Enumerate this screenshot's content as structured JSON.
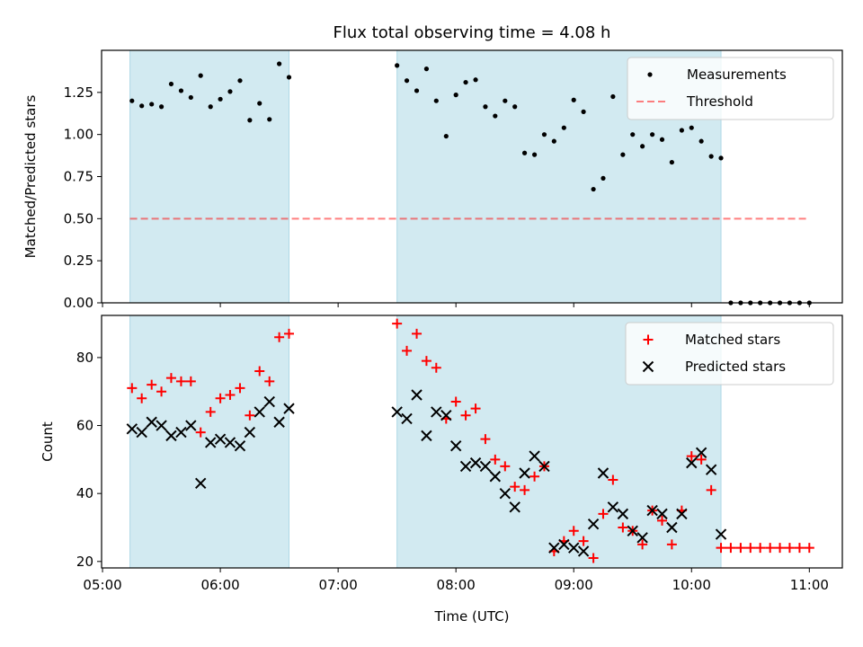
{
  "chart_data": {
    "type": "scatter",
    "title": "Flux total observing time = 4.08 h",
    "xlabel": "Time (UTC)",
    "x_tick_labels": [
      "05:00",
      "06:00",
      "07:00",
      "08:00",
      "09:00",
      "10:00",
      "11:00"
    ],
    "x_tick_hours": [
      5,
      6,
      7,
      8,
      9,
      10,
      11
    ],
    "xlim_hours": [
      4.992,
      11.28
    ],
    "observing_windows_hours": [
      [
        5.233,
        6.583
      ],
      [
        7.5,
        10.25
      ]
    ],
    "window_color": "#add8e6",
    "panels": [
      {
        "ylabel": "Matched/Predicted stars",
        "ylim": [
          0,
          1.5
        ],
        "y_ticks": [
          0.0,
          0.25,
          0.5,
          0.75,
          1.0,
          1.25
        ],
        "y_tick_labels": [
          "0.00",
          "0.25",
          "0.50",
          "0.75",
          "1.00",
          "1.25"
        ],
        "legend": {
          "position": "upper right",
          "entries": [
            "Measurements",
            "Threshold"
          ]
        },
        "series": [
          {
            "name": "Measurements",
            "type": "scatter",
            "marker": "dot",
            "color": "#000000",
            "points": [
              [
                5.25,
                1.2
              ],
              [
                5.333,
                1.17
              ],
              [
                5.417,
                1.18
              ],
              [
                5.5,
                1.165
              ],
              [
                5.583,
                1.3
              ],
              [
                5.667,
                1.26
              ],
              [
                5.75,
                1.22
              ],
              [
                5.833,
                1.35
              ],
              [
                5.917,
                1.165
              ],
              [
                6.0,
                1.21
              ],
              [
                6.083,
                1.255
              ],
              [
                6.167,
                1.32
              ],
              [
                6.25,
                1.085
              ],
              [
                6.333,
                1.185
              ],
              [
                6.417,
                1.09
              ],
              [
                6.5,
                1.42
              ],
              [
                6.583,
                1.34
              ],
              [
                7.5,
                1.41
              ],
              [
                7.583,
                1.32
              ],
              [
                7.667,
                1.26
              ],
              [
                7.75,
                1.39
              ],
              [
                7.833,
                1.2
              ],
              [
                7.917,
                0.99
              ],
              [
                8.0,
                1.235
              ],
              [
                8.083,
                1.31
              ],
              [
                8.167,
                1.325
              ],
              [
                8.25,
                1.165
              ],
              [
                8.333,
                1.11
              ],
              [
                8.417,
                1.2
              ],
              [
                8.5,
                1.165
              ],
              [
                8.583,
                0.89
              ],
              [
                8.667,
                0.88
              ],
              [
                8.75,
                1.0
              ],
              [
                8.833,
                0.96
              ],
              [
                8.917,
                1.04
              ],
              [
                9.0,
                1.205
              ],
              [
                9.083,
                1.135
              ],
              [
                9.167,
                0.675
              ],
              [
                9.25,
                0.74
              ],
              [
                9.333,
                1.225
              ],
              [
                9.417,
                0.88
              ],
              [
                9.5,
                1.0
              ],
              [
                9.583,
                0.93
              ],
              [
                9.667,
                1.0
              ],
              [
                9.75,
                0.97
              ],
              [
                9.833,
                0.835
              ],
              [
                9.917,
                1.025
              ],
              [
                10.0,
                1.04
              ],
              [
                10.083,
                0.96
              ],
              [
                10.167,
                0.87
              ],
              [
                10.25,
                0.86
              ],
              [
                10.333,
                0.0
              ],
              [
                10.417,
                0.0
              ],
              [
                10.5,
                0.0
              ],
              [
                10.583,
                0.0
              ],
              [
                10.667,
                0.0
              ],
              [
                10.75,
                0.0
              ],
              [
                10.833,
                0.0
              ],
              [
                10.917,
                0.0
              ],
              [
                11.0,
                0.0
              ]
            ]
          },
          {
            "name": "Threshold",
            "type": "line",
            "style": "dashed",
            "color": "#ff0000",
            "opacity": 0.5,
            "points": [
              [
                5.233,
                0.5
              ],
              [
                11.0,
                0.5
              ]
            ]
          }
        ]
      },
      {
        "ylabel": "Count",
        "ylim": [
          18.1,
          92.4
        ],
        "y_ticks": [
          20,
          40,
          60,
          80
        ],
        "y_tick_labels": [
          "20",
          "40",
          "60",
          "80"
        ],
        "legend": {
          "position": "upper right",
          "entries": [
            "Matched stars",
            "Predicted stars"
          ]
        },
        "series": [
          {
            "name": "Matched stars",
            "type": "scatter",
            "marker": "plus",
            "color": "#ff0000",
            "points": [
              [
                5.25,
                71
              ],
              [
                5.333,
                68
              ],
              [
                5.417,
                72
              ],
              [
                5.5,
                70
              ],
              [
                5.583,
                74
              ],
              [
                5.667,
                73
              ],
              [
                5.75,
                73
              ],
              [
                5.833,
                58
              ],
              [
                5.917,
                64
              ],
              [
                6.0,
                68
              ],
              [
                6.083,
                69
              ],
              [
                6.167,
                71
              ],
              [
                6.25,
                63
              ],
              [
                6.333,
                76
              ],
              [
                6.417,
                73
              ],
              [
                6.5,
                86
              ],
              [
                6.583,
                87
              ],
              [
                7.5,
                90
              ],
              [
                7.583,
                82
              ],
              [
                7.667,
                87
              ],
              [
                7.75,
                79
              ],
              [
                7.833,
                77
              ],
              [
                7.917,
                62
              ],
              [
                8.0,
                67
              ],
              [
                8.083,
                63
              ],
              [
                8.167,
                65
              ],
              [
                8.25,
                56
              ],
              [
                8.333,
                50
              ],
              [
                8.417,
                48
              ],
              [
                8.5,
                42
              ],
              [
                8.583,
                41
              ],
              [
                8.667,
                45
              ],
              [
                8.75,
                48
              ],
              [
                8.833,
                23
              ],
              [
                8.917,
                26
              ],
              [
                9.0,
                29
              ],
              [
                9.083,
                26
              ],
              [
                9.167,
                21
              ],
              [
                9.25,
                34
              ],
              [
                9.333,
                44
              ],
              [
                9.417,
                30
              ],
              [
                9.5,
                29
              ],
              [
                9.583,
                25
              ],
              [
                9.667,
                35
              ],
              [
                9.75,
                32
              ],
              [
                9.833,
                25
              ],
              [
                9.917,
                35
              ],
              [
                10.0,
                51
              ],
              [
                10.083,
                50
              ],
              [
                10.167,
                41
              ],
              [
                10.25,
                24
              ],
              [
                10.333,
                24
              ],
              [
                10.417,
                24
              ],
              [
                10.5,
                24
              ],
              [
                10.583,
                24
              ],
              [
                10.667,
                24
              ],
              [
                10.75,
                24
              ],
              [
                10.833,
                24
              ],
              [
                10.917,
                24
              ],
              [
                11.0,
                24
              ]
            ]
          },
          {
            "name": "Predicted stars",
            "type": "scatter",
            "marker": "x",
            "color": "#000000",
            "points": [
              [
                5.25,
                59
              ],
              [
                5.333,
                58
              ],
              [
                5.417,
                61
              ],
              [
                5.5,
                60
              ],
              [
                5.583,
                57
              ],
              [
                5.667,
                58
              ],
              [
                5.75,
                60
              ],
              [
                5.833,
                43
              ],
              [
                5.917,
                55
              ],
              [
                6.0,
                56
              ],
              [
                6.083,
                55
              ],
              [
                6.167,
                54
              ],
              [
                6.25,
                58
              ],
              [
                6.333,
                64
              ],
              [
                6.417,
                67
              ],
              [
                6.5,
                61
              ],
              [
                6.583,
                65
              ],
              [
                7.5,
                64
              ],
              [
                7.583,
                62
              ],
              [
                7.667,
                69
              ],
              [
                7.75,
                57
              ],
              [
                7.833,
                64
              ],
              [
                7.917,
                63
              ],
              [
                8.0,
                54
              ],
              [
                8.083,
                48
              ],
              [
                8.167,
                49
              ],
              [
                8.25,
                48
              ],
              [
                8.333,
                45
              ],
              [
                8.417,
                40
              ],
              [
                8.5,
                36
              ],
              [
                8.583,
                46
              ],
              [
                8.667,
                51
              ],
              [
                8.75,
                48
              ],
              [
                8.833,
                24
              ],
              [
                8.917,
                25
              ],
              [
                9.0,
                24
              ],
              [
                9.083,
                23
              ],
              [
                9.167,
                31
              ],
              [
                9.25,
                46
              ],
              [
                9.333,
                36
              ],
              [
                9.417,
                34
              ],
              [
                9.5,
                29
              ],
              [
                9.583,
                27
              ],
              [
                9.667,
                35
              ],
              [
                9.75,
                34
              ],
              [
                9.833,
                30
              ],
              [
                9.917,
                34
              ],
              [
                10.0,
                49
              ],
              [
                10.083,
                52
              ],
              [
                10.167,
                47
              ],
              [
                10.25,
                28
              ]
            ]
          }
        ]
      }
    ]
  }
}
